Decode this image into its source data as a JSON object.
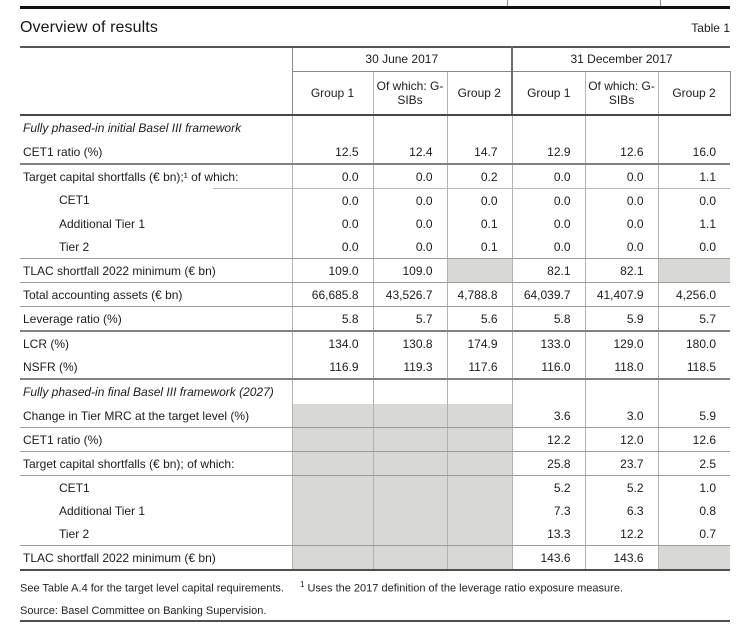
{
  "page": {
    "title": "Overview of results",
    "table_number": "Table 1"
  },
  "header": {
    "groups": [
      "30 June 2017",
      "31 December 2017"
    ],
    "columns": [
      "Group 1",
      "Of which: G-SIBs",
      "Group 2",
      "Group 1",
      "Of which: G-SIBs",
      "Group 2"
    ]
  },
  "table": {
    "rows": [
      {
        "label": "Fully phased-in initial Basel III framework",
        "values": [
          "",
          "",
          "",
          "",
          "",
          ""
        ]
      },
      {
        "label": "CET1 ratio (%)",
        "values": [
          "12.5",
          "12.4",
          "14.7",
          "12.9",
          "12.6",
          "16.0"
        ]
      },
      {
        "label": "Target capital shortfalls (€ bn);¹ of which:",
        "values": [
          "0.0",
          "0.0",
          "0.2",
          "0.0",
          "0.0",
          "1.1"
        ]
      },
      {
        "label": "CET1",
        "values": [
          "0.0",
          "0.0",
          "0.0",
          "0.0",
          "0.0",
          "0.0"
        ]
      },
      {
        "label": "Additional Tier 1",
        "values": [
          "0.0",
          "0.0",
          "0.1",
          "0.0",
          "0.0",
          "1.1"
        ]
      },
      {
        "label": "Tier 2",
        "values": [
          "0.0",
          "0.0",
          "0.1",
          "0.0",
          "0.0",
          "0.0"
        ]
      },
      {
        "label": "TLAC shortfall 2022 minimum (€ bn)",
        "values": [
          "109.0",
          "109.0",
          "",
          "82.1",
          "82.1",
          ""
        ]
      },
      {
        "label": "Total accounting assets (€ bn)",
        "values": [
          "66,685.8",
          "43,526.7",
          "4,788.8",
          "64,039.7",
          "41,407.9",
          "4,256.0"
        ]
      },
      {
        "label": "Leverage ratio (%)",
        "values": [
          "5.8",
          "5.7",
          "5.6",
          "5.8",
          "5.9",
          "5.7"
        ]
      },
      {
        "label": "LCR (%)",
        "values": [
          "134.0",
          "130.8",
          "174.9",
          "133.0",
          "129.0",
          "180.0"
        ]
      },
      {
        "label": "NSFR (%)",
        "values": [
          "116.9",
          "119.3",
          "117.6",
          "116.0",
          "118.0",
          "118.5"
        ]
      },
      {
        "label": "Fully phased-in final Basel III framework (2027)",
        "values": [
          "",
          "",
          "",
          "",
          "",
          ""
        ]
      },
      {
        "label": "Change in Tier MRC at the target level (%)",
        "values": [
          "",
          "",
          "",
          "3.6",
          "3.0",
          "5.9"
        ]
      },
      {
        "label": "CET1 ratio (%)",
        "values": [
          "",
          "",
          "",
          "12.2",
          "12.0",
          "12.6"
        ]
      },
      {
        "label": "Target capital shortfalls (€ bn); of which:",
        "values": [
          "",
          "",
          "",
          "25.8",
          "23.7",
          "2.5"
        ]
      },
      {
        "label": "CET1",
        "values": [
          "",
          "",
          "",
          "5.2",
          "5.2",
          "1.0"
        ]
      },
      {
        "label": "Additional Tier 1",
        "values": [
          "",
          "",
          "",
          "7.3",
          "6.3",
          "0.8"
        ]
      },
      {
        "label": "Tier 2",
        "values": [
          "",
          "",
          "",
          "13.3",
          "12.2",
          "0.7"
        ]
      },
      {
        "label": "TLAC shortfall 2022 minimum (€ bn)",
        "values": [
          "",
          "",
          "",
          "143.6",
          "143.6",
          ""
        ]
      }
    ]
  },
  "footnotes": {
    "note1": "See Table A.4 for the target level capital requirements.",
    "marker": "1",
    "note2": "Uses the 2017 definition of the leverage ratio exposure measure.",
    "source": "Source: Basel Committee on Banking Supervision."
  }
}
